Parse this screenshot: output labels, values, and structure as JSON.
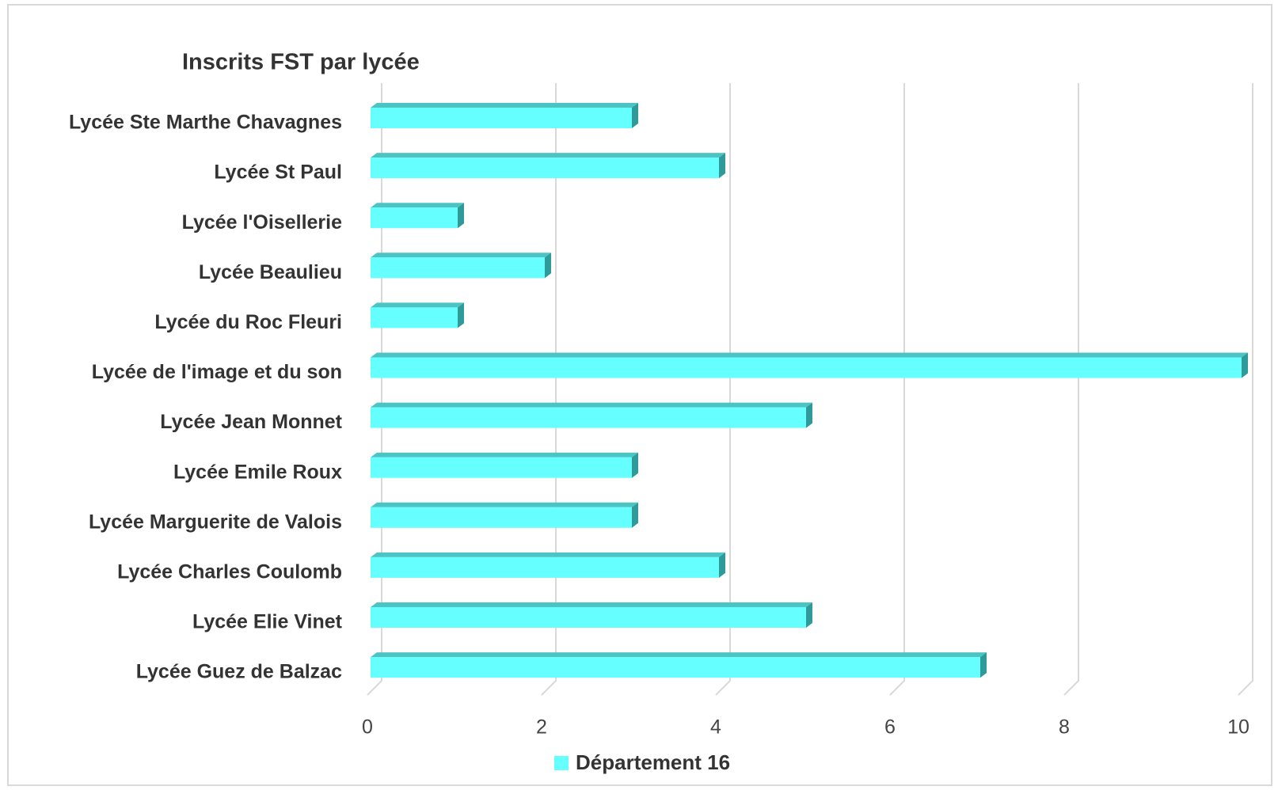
{
  "chart_data": {
    "type": "bar",
    "orientation": "horizontal",
    "title": "Inscrits FST par lycée",
    "categories": [
      "Lycée Ste Marthe Chavagnes",
      "Lycée St Paul",
      "Lycée l'Oisellerie",
      "Lycée Beaulieu",
      "Lycée du Roc Fleuri",
      "Lycée de l'image et du son",
      "Lycée Jean Monnet",
      "Lycée Emile Roux",
      "Lycée Marguerite de Valois",
      "Lycée Charles Coulomb",
      "Lycée Elie Vinet",
      "Lycée Guez de Balzac"
    ],
    "series": [
      {
        "name": "Département 16",
        "color": "#66ffff",
        "values": [
          3,
          4,
          1,
          2,
          1,
          10,
          5,
          3,
          3,
          4,
          5,
          7
        ]
      }
    ],
    "xlim": [
      0,
      10
    ],
    "xticks": [
      0,
      2,
      4,
      6,
      8,
      10
    ],
    "grid": true,
    "legend": "bottom"
  }
}
